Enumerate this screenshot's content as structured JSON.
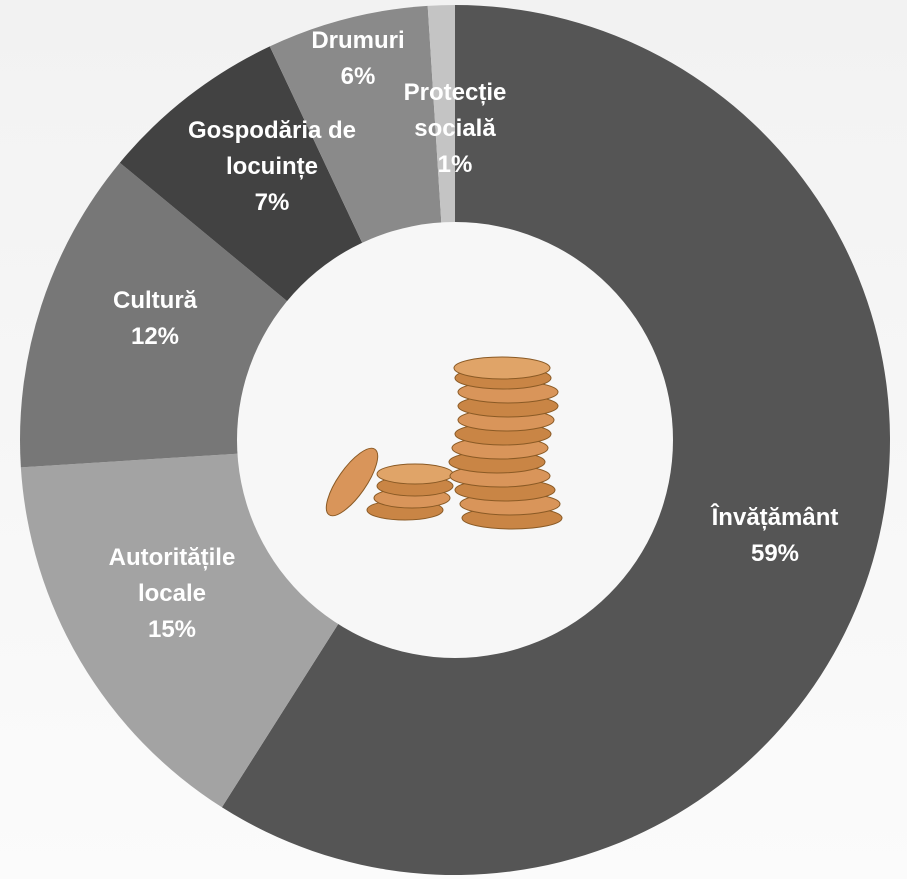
{
  "chart_data": {
    "type": "donut",
    "categories": [
      "Învățământ",
      "Autoritățile locale",
      "Cultură",
      "Gospodăria de locuințe",
      "Drumuri",
      "Protecție socială"
    ],
    "values": [
      59,
      15,
      12,
      7,
      6,
      1
    ],
    "value_labels": [
      "59%",
      "15%",
      "12%",
      "7%",
      "6%",
      "1%"
    ],
    "colors": [
      "#555555",
      "#a3a3a3",
      "#777777",
      "#424242",
      "#8a8a8a",
      "#c4c4c4"
    ]
  }
}
